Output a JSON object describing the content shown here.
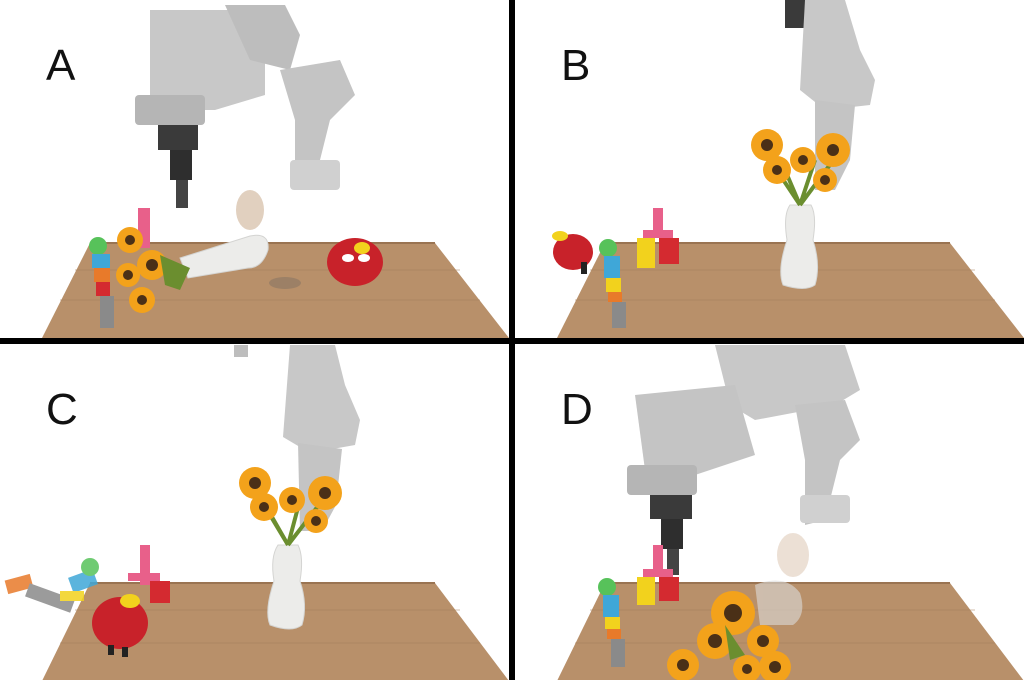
{
  "panels": [
    {
      "label": "A"
    },
    {
      "label": "B"
    },
    {
      "label": "C"
    },
    {
      "label": "D"
    }
  ],
  "colors": {
    "divider": "#000000",
    "background": "#ffffff",
    "table_top": "#b8906a",
    "table_edge": "#8f6a48",
    "robot_arm": "#c8c8c8",
    "gripper": "#3a3a3a",
    "vase": "#ececea",
    "sunflower_petal": "#f3a21b",
    "sunflower_center": "#4a3017",
    "stem": "#6b8e2f",
    "toy_red": "#c8222a",
    "block_pink": "#e8608a",
    "block_red": "#d42a30",
    "block_yellow": "#f2d21d",
    "block_blue": "#3fa7d8",
    "block_orange": "#e87a2a",
    "block_green": "#57c25a"
  }
}
